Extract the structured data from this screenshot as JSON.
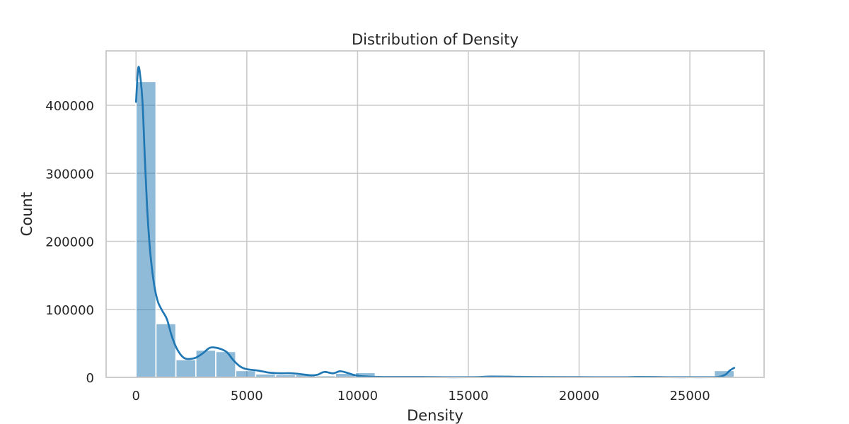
{
  "chart_data": {
    "type": "bar",
    "title": "Distribution of Density",
    "xlabel": "Density",
    "ylabel": "Count",
    "xlim": [
      -1350,
      28350
    ],
    "ylim": [
      0,
      480000
    ],
    "x_ticks": [
      0,
      5000,
      10000,
      15000,
      20000,
      25000
    ],
    "y_ticks": [
      0,
      100000,
      200000,
      300000,
      400000
    ],
    "grid": true,
    "histogram": {
      "bin_start": 0,
      "bin_width": 900,
      "counts": [
        435000,
        79000,
        26000,
        40000,
        38000,
        10000,
        5000,
        4000,
        4000,
        2500,
        6000,
        7000,
        2000,
        800,
        500,
        400,
        300,
        300,
        1000,
        700,
        400,
        300,
        300,
        300,
        300,
        300,
        300,
        300,
        300,
        10000
      ],
      "color": "#1f77b4"
    },
    "kde": {
      "color": "#1f77b4",
      "x": [
        0,
        100,
        200,
        300,
        400,
        500,
        600,
        700,
        800,
        900,
        1000,
        1100,
        1200,
        1400,
        1600,
        1800,
        2000,
        2200,
        2400,
        2700,
        3000,
        3300,
        3500,
        3800,
        4100,
        4400,
        4700,
        5000,
        5500,
        6000,
        6500,
        7000,
        7500,
        7900,
        8200,
        8500,
        8900,
        9200,
        9500,
        9900,
        10300,
        11000,
        12000,
        13000,
        14000,
        15000,
        15500,
        16000,
        17000,
        18000,
        20000,
        22000,
        22700,
        24000,
        25000,
        26000,
        26300,
        26600,
        26800,
        27000
      ],
      "y": [
        405000,
        455000,
        440000,
        400000,
        320000,
        250000,
        200000,
        165000,
        140000,
        122000,
        110000,
        103000,
        97000,
        85000,
        62000,
        45000,
        34000,
        28000,
        27000,
        29000,
        35000,
        43000,
        44000,
        42000,
        37000,
        25000,
        16000,
        12000,
        10000,
        7000,
        6000,
        6000,
        4500,
        3000,
        4000,
        8000,
        6000,
        9000,
        7000,
        3000,
        1500,
        700,
        500,
        600,
        300,
        300,
        500,
        1200,
        1000,
        500,
        400,
        300,
        700,
        300,
        300,
        300,
        700,
        4000,
        10000,
        14000
      ]
    }
  }
}
